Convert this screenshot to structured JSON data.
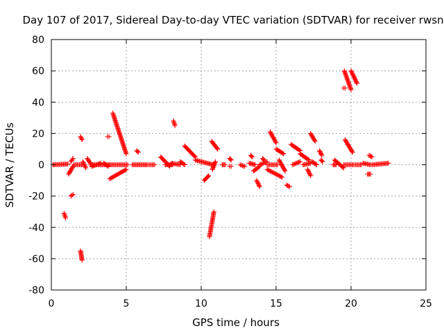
{
  "chart_data": {
    "type": "scatter",
    "title": "Day 107 of 2017, Sidereal Day-to-day VTEC variation (SDTVAR) for receiver rwsn",
    "xlabel": "GPS time / hours",
    "ylabel": "SDTVAR / TECUs",
    "xlim": [
      0,
      25
    ],
    "ylim": [
      -80,
      80
    ],
    "xticks": [
      0,
      5,
      10,
      15,
      20,
      25
    ],
    "yticks": [
      -80,
      -60,
      -40,
      -20,
      0,
      20,
      40,
      60,
      80
    ],
    "grid": true,
    "marker": "+",
    "color": "#ff0000",
    "segments": [
      {
        "x0": 0.1,
        "x1": 1.1,
        "y0": 0,
        "y1": 0.5
      },
      {
        "x0": 0.85,
        "x1": 0.95,
        "y0": -31,
        "y1": -34
      },
      {
        "x0": 1.15,
        "x1": 1.45,
        "y0": -6,
        "y1": -1
      },
      {
        "x0": 1.3,
        "x1": 1.45,
        "y0": -20,
        "y1": -19
      },
      {
        "x0": 1.3,
        "x1": 1.45,
        "y0": 2,
        "y1": 4
      },
      {
        "x0": 1.5,
        "x1": 2.1,
        "y0": 0,
        "y1": 0
      },
      {
        "x0": 1.95,
        "x1": 2.05,
        "y0": 18,
        "y1": 16
      },
      {
        "x0": 1.95,
        "x1": 2.05,
        "y0": -55,
        "y1": -61
      },
      {
        "x0": 2.1,
        "x1": 2.3,
        "y0": 2,
        "y1": -2
      },
      {
        "x0": 2.4,
        "x1": 2.6,
        "y0": 4,
        "y1": 1
      },
      {
        "x0": 2.6,
        "x1": 3.9,
        "y0": 0,
        "y1": 0
      },
      {
        "x0": 2.7,
        "x1": 3.3,
        "y0": -1,
        "y1": 1
      },
      {
        "x0": 3.5,
        "x1": 3.8,
        "y0": 1,
        "y1": -1
      },
      {
        "x0": 3.75,
        "x1": 3.85,
        "y0": 18,
        "y1": 18
      },
      {
        "x0": 3.9,
        "x1": 5.1,
        "y0": 0,
        "y1": 0
      },
      {
        "x0": 3.9,
        "x1": 5.0,
        "y0": -9,
        "y1": -3
      },
      {
        "x0": 4.1,
        "x1": 5.0,
        "y0": 33,
        "y1": 7
      },
      {
        "x0": 5.7,
        "x1": 5.8,
        "y0": 9,
        "y1": 8
      },
      {
        "x0": 5.4,
        "x1": 6.4,
        "y0": 0,
        "y1": 0
      },
      {
        "x0": 6.5,
        "x1": 6.9,
        "y0": 0,
        "y1": 0
      },
      {
        "x0": 7.3,
        "x1": 7.9,
        "y0": 5,
        "y1": -1
      },
      {
        "x0": 7.6,
        "x1": 8.1,
        "y0": 0,
        "y1": 0
      },
      {
        "x0": 8.15,
        "x1": 8.25,
        "y0": 28,
        "y1": 25
      },
      {
        "x0": 8.0,
        "x1": 8.6,
        "y0": 1,
        "y1": 0
      },
      {
        "x0": 8.6,
        "x1": 8.9,
        "y0": 2,
        "y1": 0
      },
      {
        "x0": 8.9,
        "x1": 9.6,
        "y0": 12,
        "y1": 5
      },
      {
        "x0": 9.6,
        "x1": 10.8,
        "y0": 3,
        "y1": 0
      },
      {
        "x0": 10.2,
        "x1": 10.5,
        "y0": -10,
        "y1": -7
      },
      {
        "x0": 10.55,
        "x1": 10.85,
        "y0": -46,
        "y1": -30
      },
      {
        "x0": 10.7,
        "x1": 11.1,
        "y0": 15,
        "y1": 10
      },
      {
        "x0": 10.75,
        "x1": 10.95,
        "y0": -3,
        "y1": 2
      },
      {
        "x0": 11.4,
        "x1": 11.6,
        "y0": 0,
        "y1": 0
      },
      {
        "x0": 11.9,
        "x1": 12.0,
        "y0": 4,
        "y1": 3
      },
      {
        "x0": 11.9,
        "x1": 12.0,
        "y0": -1,
        "y1": -1
      },
      {
        "x0": 12.6,
        "x1": 12.9,
        "y0": 0,
        "y1": -1
      },
      {
        "x0": 13.2,
        "x1": 13.6,
        "y0": 1,
        "y1": 0
      },
      {
        "x0": 13.3,
        "x1": 13.4,
        "y0": 6,
        "y1": 5
      },
      {
        "x0": 13.5,
        "x1": 13.9,
        "y0": -4,
        "y1": -1
      },
      {
        "x0": 13.7,
        "x1": 13.9,
        "y0": -10,
        "y1": -14
      },
      {
        "x0": 13.9,
        "x1": 14.4,
        "y0": 0,
        "y1": 2
      },
      {
        "x0": 14.1,
        "x1": 14.2,
        "y0": 4,
        "y1": 3
      },
      {
        "x0": 14.4,
        "x1": 15.4,
        "y0": -3,
        "y1": -8
      },
      {
        "x0": 14.4,
        "x1": 15.1,
        "y0": 0,
        "y1": 0
      },
      {
        "x0": 14.6,
        "x1": 15.0,
        "y0": 21,
        "y1": 14
      },
      {
        "x0": 15.0,
        "x1": 15.5,
        "y0": 10,
        "y1": 7
      },
      {
        "x0": 15.2,
        "x1": 15.6,
        "y0": 3,
        "y1": -4
      },
      {
        "x0": 15.7,
        "x1": 15.9,
        "y0": -13,
        "y1": -14
      },
      {
        "x0": 16.0,
        "x1": 16.6,
        "y0": 13,
        "y1": 9
      },
      {
        "x0": 16.1,
        "x1": 16.6,
        "y0": 0,
        "y1": 2
      },
      {
        "x0": 16.6,
        "x1": 17.2,
        "y0": 7,
        "y1": 3
      },
      {
        "x0": 16.8,
        "x1": 17.3,
        "y0": 0,
        "y1": 1
      },
      {
        "x0": 17.1,
        "x1": 17.3,
        "y0": -3,
        "y1": -7
      },
      {
        "x0": 17.3,
        "x1": 17.6,
        "y0": 20,
        "y1": 15
      },
      {
        "x0": 17.4,
        "x1": 17.7,
        "y0": 2,
        "y1": 0
      },
      {
        "x0": 17.9,
        "x1": 18.05,
        "y0": 9,
        "y1": 6
      },
      {
        "x0": 18.0,
        "x1": 18.1,
        "y0": 3,
        "y1": 2
      },
      {
        "x0": 18.8,
        "x1": 19.0,
        "y0": 0,
        "y1": 0
      },
      {
        "x0": 18.9,
        "x1": 19.5,
        "y0": 3,
        "y1": -2
      },
      {
        "x0": 19.5,
        "x1": 19.6,
        "y0": 49,
        "y1": 49
      },
      {
        "x0": 19.55,
        "x1": 20.0,
        "y0": 60,
        "y1": 48
      },
      {
        "x0": 19.6,
        "x1": 20.1,
        "y0": 16,
        "y1": 8
      },
      {
        "x0": 19.5,
        "x1": 20.2,
        "y0": 0,
        "y1": 0
      },
      {
        "x0": 20.0,
        "x1": 20.4,
        "y0": 60,
        "y1": 52
      },
      {
        "x0": 20.3,
        "x1": 20.7,
        "y0": 0,
        "y1": 0
      },
      {
        "x0": 20.8,
        "x1": 21.3,
        "y0": 1,
        "y1": 0
      },
      {
        "x0": 21.1,
        "x1": 21.3,
        "y0": -6,
        "y1": -6
      },
      {
        "x0": 21.2,
        "x1": 21.4,
        "y0": 6,
        "y1": 5
      },
      {
        "x0": 21.4,
        "x1": 22.5,
        "y0": 0,
        "y1": 1
      }
    ]
  }
}
